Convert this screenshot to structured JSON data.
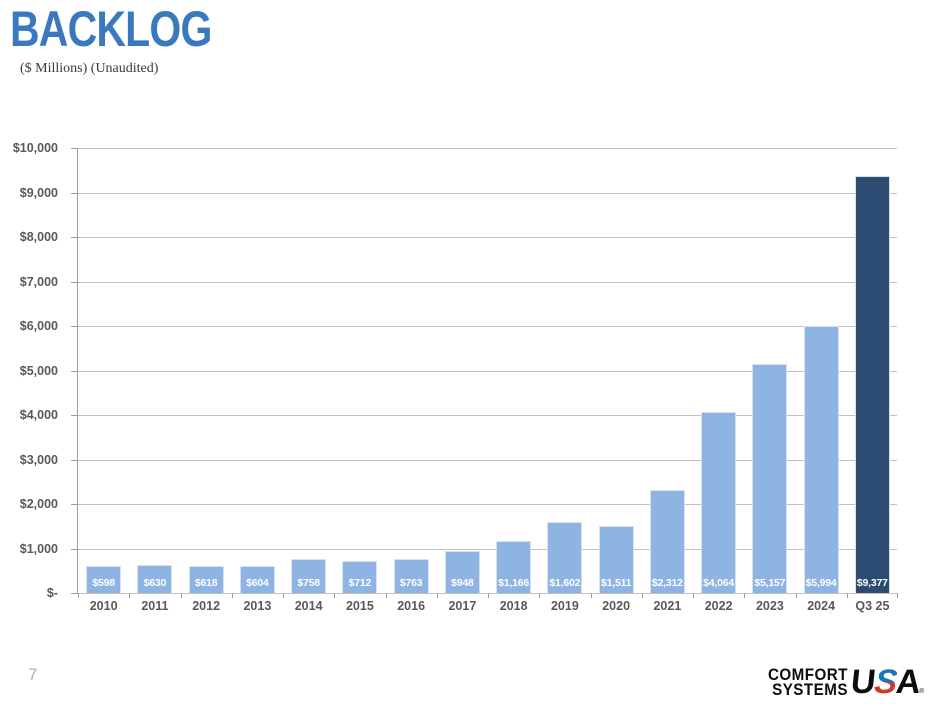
{
  "slide": {
    "title": "BACKLOG",
    "subtitle": "($ Millions) (Unaudited)",
    "page_number": "7"
  },
  "chart_data": {
    "type": "bar",
    "title": "BACKLOG ($ Millions) (Unaudited)",
    "categories": [
      "2010",
      "2011",
      "2012",
      "2013",
      "2014",
      "2015",
      "2016",
      "2017",
      "2018",
      "2019",
      "2020",
      "2021",
      "2022",
      "2023",
      "2024",
      "Q3 25"
    ],
    "values": [
      598,
      630,
      618,
      604,
      758,
      712,
      763,
      948,
      1166,
      1602,
      1511,
      2312,
      4064,
      5157,
      5994,
      9377
    ],
    "value_labels": [
      "$598",
      "$630",
      "$618",
      "$604",
      "$758",
      "$712",
      "$763",
      "$948",
      "$1,166",
      "$1,602",
      "$1,511",
      "$2,312",
      "$4,064",
      "$5,157",
      "$5,994",
      "$9,377"
    ],
    "xlabel": "",
    "ylabel": "",
    "ylim": [
      0,
      10000
    ],
    "y_tick_step": 1000,
    "y_tick_labels_top_to_bottom": [
      "$10,000",
      "$9,000",
      "$8,000",
      "$7,000",
      "$6,000",
      "$5,000",
      "$4,000",
      "$3,000",
      "$2,000",
      "$1,000",
      "$-"
    ],
    "grid": true,
    "legend": "none",
    "bar_color": "#8DB4E2",
    "highlight_color": "#2B4B70",
    "highlight_index": 15,
    "value_label_color": "#FFFFFF"
  },
  "logo": {
    "company_line1": "COMFORT",
    "company_line2": "SYSTEMS",
    "usa_u": "U",
    "usa_s": "S",
    "usa_a": "A",
    "registered": "®"
  },
  "colors": {
    "title_blue": "#3B79BF",
    "axis_text_gray": "#595959",
    "gridline_gray": "#C2C2C2",
    "page_number_blue": "#9AB5DB"
  }
}
